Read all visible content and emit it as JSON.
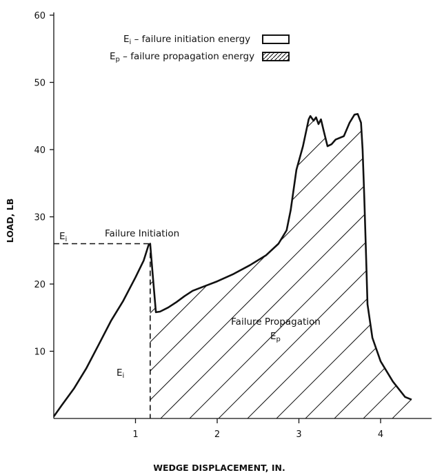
{
  "chart_data": {
    "type": "line",
    "xlabel": "WEDGE DISPLACEMENT, IN.",
    "ylabel": "LOAD, LB",
    "xlim": [
      0,
      4.6
    ],
    "ylim": [
      0,
      60
    ],
    "x_ticks": [
      "1",
      "2",
      "3",
      "4"
    ],
    "y_ticks": [
      "10",
      "20",
      "30",
      "40",
      "50",
      "60"
    ],
    "grid": false,
    "legend": {
      "placement": "top-right",
      "entries": [
        {
          "symbol": "E",
          "subscript": "i",
          "text": " – failure initiation energy",
          "fill": "blank"
        },
        {
          "symbol": "E",
          "subscript": "p",
          "text": " – failure propagation energy",
          "fill": "hatched"
        }
      ]
    },
    "annotations": {
      "failure_initiation": "Failure Initiation",
      "failure_propagation": "Failure Propagation",
      "ep_symbol": "E",
      "ep_subscript": "p",
      "ei_symbol": "E",
      "ei_subscript": "i",
      "ei_axis_symbol": "E",
      "ei_axis_subscript": "i"
    },
    "initiation_point": {
      "x": 1.18,
      "y": 26
    },
    "series": [
      {
        "points": [
          [
            0.0,
            0.3
          ],
          [
            0.1,
            2.0
          ],
          [
            0.25,
            4.5
          ],
          [
            0.4,
            7.5
          ],
          [
            0.55,
            11.0
          ],
          [
            0.7,
            14.5
          ],
          [
            0.85,
            17.5
          ],
          [
            1.0,
            21.0
          ],
          [
            1.1,
            23.5
          ],
          [
            1.16,
            25.8
          ],
          [
            1.18,
            26.0
          ],
          [
            1.21,
            21.5
          ],
          [
            1.25,
            15.8
          ],
          [
            1.3,
            15.9
          ],
          [
            1.4,
            16.5
          ],
          [
            1.5,
            17.3
          ],
          [
            1.6,
            18.2
          ],
          [
            1.7,
            19.0
          ],
          [
            1.85,
            19.7
          ],
          [
            2.0,
            20.4
          ],
          [
            2.2,
            21.5
          ],
          [
            2.4,
            22.8
          ],
          [
            2.6,
            24.3
          ],
          [
            2.75,
            26.0
          ],
          [
            2.85,
            28.0
          ],
          [
            2.9,
            31.0
          ],
          [
            2.97,
            37.0
          ],
          [
            3.05,
            40.5
          ],
          [
            3.12,
            44.5
          ],
          [
            3.14,
            45.0
          ],
          [
            3.18,
            44.3
          ],
          [
            3.21,
            44.8
          ],
          [
            3.24,
            43.8
          ],
          [
            3.27,
            44.5
          ],
          [
            3.3,
            43.0
          ],
          [
            3.35,
            40.5
          ],
          [
            3.4,
            40.8
          ],
          [
            3.45,
            41.5
          ],
          [
            3.55,
            42.0
          ],
          [
            3.62,
            44.0
          ],
          [
            3.68,
            45.2
          ],
          [
            3.72,
            45.3
          ],
          [
            3.76,
            44.0
          ],
          [
            3.78,
            40.0
          ],
          [
            3.8,
            33.0
          ],
          [
            3.82,
            25.0
          ],
          [
            3.84,
            17.0
          ],
          [
            3.9,
            12.0
          ],
          [
            4.0,
            8.5
          ],
          [
            4.15,
            5.5
          ],
          [
            4.3,
            3.2
          ],
          [
            4.38,
            2.8
          ]
        ]
      }
    ]
  }
}
